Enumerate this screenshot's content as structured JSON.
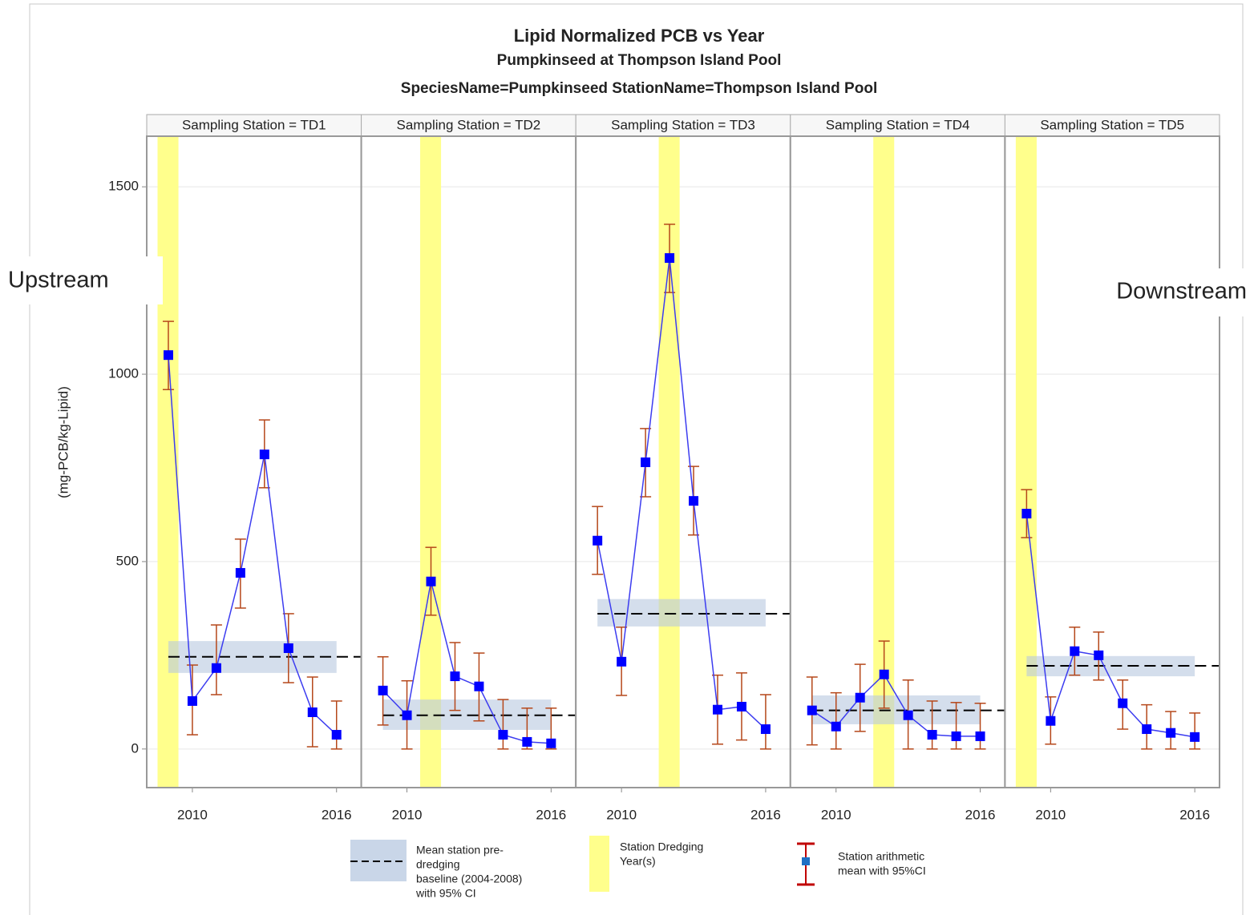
{
  "title": "Lipid Normalized PCB vs Year",
  "subtitle": "Pumpkinseed at Thompson Island Pool",
  "byline": "SpeciesName=Pumpkinseed StationName=Thompson Island Pool",
  "y_label": "(mg-PCB/kg-Lipid)",
  "annotations": [
    "Upstream",
    "Downstream"
  ],
  "grid": true,
  "legend": [
    {
      "label_lines": [
        "Mean station pre-",
        "dredging",
        "baseline (2004-2008)",
        "with 95% CI"
      ]
    },
    {
      "label_lines": [
        "Station Dredging",
        "Year(s)"
      ]
    },
    {
      "label_lines": [
        "Station arithmetic",
        "mean with 95%CI"
      ]
    }
  ],
  "chart_data": [
    {
      "type": "line",
      "title": "Sampling Station = TD1",
      "x": [
        2009,
        2010,
        2011,
        2012,
        2013,
        2014,
        2015,
        2016
      ],
      "values": [
        1051,
        128,
        216,
        470,
        786,
        269,
        98,
        38
      ],
      "lower": [
        959,
        38,
        145,
        376,
        697,
        177,
        6,
        0
      ],
      "upper": [
        1141,
        224,
        331,
        560,
        878,
        361,
        192,
        128
      ],
      "baseline": {
        "mean": 246,
        "lower": 203,
        "upper": 288
      },
      "dredging_years": [
        2009
      ],
      "color": "#0000ff",
      "line_color": "#3c3cf0",
      "error_color": "#b5471a",
      "xlim": [
        2008.1,
        2017.03
      ],
      "xticks": [
        2010,
        2016
      ],
      "ylim": [
        -103,
        1635
      ],
      "yticks": [
        0,
        500,
        1000,
        1500
      ]
    },
    {
      "type": "line",
      "title": "Sampling Station = TD2",
      "x": [
        2009,
        2010,
        2011,
        2012,
        2013,
        2014,
        2015,
        2016
      ],
      "values": [
        156,
        90,
        447,
        194,
        167,
        38,
        19,
        15
      ],
      "lower": [
        64,
        0,
        357,
        103,
        75,
        0,
        0,
        0
      ],
      "upper": [
        246,
        182,
        538,
        284,
        256,
        132,
        109,
        109
      ],
      "baseline": {
        "mean": 90,
        "lower": 51,
        "upper": 132
      },
      "dredging_years": [
        2011
      ],
      "color": "#0000ff",
      "line_color": "#3c3cf0",
      "error_color": "#b5471a",
      "xlim": [
        2008.1,
        2017.03
      ],
      "xticks": [
        2010,
        2016
      ],
      "ylim": [
        -103,
        1635
      ],
      "yticks": [
        0,
        500,
        1000,
        1500
      ]
    },
    {
      "type": "line",
      "title": "Sampling Station = TD3",
      "x": [
        2009,
        2010,
        2011,
        2012,
        2013,
        2014,
        2015,
        2016
      ],
      "values": [
        556,
        233,
        765,
        1310,
        662,
        105,
        113,
        53
      ],
      "lower": [
        466,
        143,
        673,
        1218,
        571,
        13,
        24,
        0
      ],
      "upper": [
        647,
        325,
        855,
        1400,
        754,
        197,
        203,
        145
      ],
      "baseline": {
        "mean": 361,
        "lower": 327,
        "upper": 400
      },
      "dredging_years": [
        2012
      ],
      "color": "#0000ff",
      "line_color": "#3c3cf0",
      "error_color": "#b5471a",
      "xlim": [
        2008.1,
        2017.03
      ],
      "xticks": [
        2010,
        2016
      ],
      "ylim": [
        -103,
        1635
      ],
      "yticks": [
        0,
        500,
        1000,
        1500
      ]
    },
    {
      "type": "line",
      "title": "Sampling Station = TD4",
      "x": [
        2009,
        2010,
        2011,
        2012,
        2013,
        2014,
        2015,
        2016
      ],
      "values": [
        103,
        60,
        137,
        199,
        90,
        38,
        34,
        34
      ],
      "lower": [
        11,
        0,
        47,
        109,
        0,
        0,
        0,
        0
      ],
      "upper": [
        192,
        150,
        226,
        288,
        184,
        128,
        124,
        122
      ],
      "baseline": {
        "mean": 103,
        "lower": 66,
        "upper": 143
      },
      "dredging_years": [
        2012
      ],
      "color": "#0000ff",
      "line_color": "#3c3cf0",
      "error_color": "#b5471a",
      "xlim": [
        2008.1,
        2017.03
      ],
      "xticks": [
        2010,
        2016
      ],
      "ylim": [
        -103,
        1635
      ],
      "yticks": [
        0,
        500,
        1000,
        1500
      ]
    },
    {
      "type": "line",
      "title": "Sampling Station = TD5",
      "x": [
        2009,
        2010,
        2011,
        2012,
        2013,
        2014,
        2015,
        2016
      ],
      "values": [
        628,
        75,
        261,
        250,
        122,
        53,
        43,
        32
      ],
      "lower": [
        564,
        13,
        197,
        184,
        53,
        0,
        0,
        0
      ],
      "upper": [
        692,
        139,
        325,
        312,
        184,
        118,
        100,
        96
      ],
      "baseline": {
        "mean": 222,
        "lower": 194,
        "upper": 248
      },
      "dredging_years": [
        2009
      ],
      "color": "#0000ff",
      "line_color": "#3c3cf0",
      "error_color": "#b5471a",
      "xlim": [
        2008.1,
        2017.03
      ],
      "xticks": [
        2010,
        2016
      ],
      "ylim": [
        -103,
        1635
      ],
      "yticks": [
        0,
        500,
        1000,
        1500
      ]
    }
  ]
}
